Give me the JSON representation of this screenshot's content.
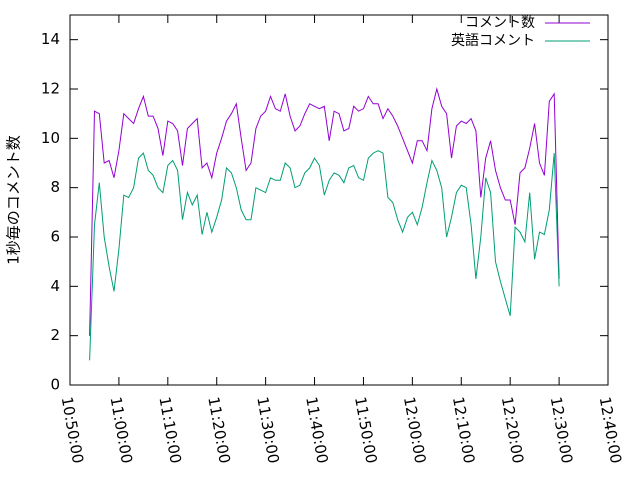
{
  "chart_data": {
    "type": "line",
    "y_label": "1秒毎のコメント数",
    "x": [
      "10:54:00",
      "10:55:00",
      "10:56:00",
      "10:57:00",
      "10:58:00",
      "10:59:00",
      "11:00:00",
      "11:01:00",
      "11:02:00",
      "11:03:00",
      "11:04:00",
      "11:05:00",
      "11:06:00",
      "11:07:00",
      "11:08:00",
      "11:09:00",
      "11:10:00",
      "11:11:00",
      "11:12:00",
      "11:13:00",
      "11:14:00",
      "11:15:00",
      "11:16:00",
      "11:17:00",
      "11:18:00",
      "11:19:00",
      "11:20:00",
      "11:21:00",
      "11:22:00",
      "11:23:00",
      "11:24:00",
      "11:25:00",
      "11:26:00",
      "11:27:00",
      "11:28:00",
      "11:29:00",
      "11:30:00",
      "11:31:00",
      "11:32:00",
      "11:33:00",
      "11:34:00",
      "11:35:00",
      "11:36:00",
      "11:37:00",
      "11:38:00",
      "11:39:00",
      "11:40:00",
      "11:41:00",
      "11:42:00",
      "11:43:00",
      "11:44:00",
      "11:45:00",
      "11:46:00",
      "11:47:00",
      "11:48:00",
      "11:49:00",
      "11:50:00",
      "11:51:00",
      "11:52:00",
      "11:53:00",
      "11:54:00",
      "11:55:00",
      "11:56:00",
      "11:57:00",
      "11:58:00",
      "11:59:00",
      "12:00:00",
      "12:01:00",
      "12:02:00",
      "12:03:00",
      "12:04:00",
      "12:05:00",
      "12:06:00",
      "12:07:00",
      "12:08:00",
      "12:09:00",
      "12:10:00",
      "12:11:00",
      "12:12:00",
      "12:13:00",
      "12:14:00",
      "12:15:00",
      "12:16:00",
      "12:17:00",
      "12:18:00",
      "12:19:00",
      "12:20:00",
      "12:21:00",
      "12:22:00",
      "12:23:00",
      "12:24:00",
      "12:25:00",
      "12:26:00",
      "12:27:00",
      "12:28:00",
      "12:29:00",
      "12:30:00"
    ],
    "series": [
      {
        "name": "コメント数",
        "color": "#9400d3",
        "values": [
          2.0,
          11.1,
          11.0,
          9.0,
          9.1,
          8.4,
          9.5,
          11.0,
          10.8,
          10.6,
          11.2,
          11.7,
          10.9,
          10.9,
          10.4,
          9.3,
          10.7,
          10.6,
          10.3,
          8.9,
          10.4,
          10.6,
          10.8,
          8.8,
          9.0,
          8.4,
          9.4,
          10.0,
          10.7,
          11.0,
          11.4,
          10.0,
          8.7,
          9.0,
          10.4,
          10.9,
          11.1,
          11.7,
          11.2,
          11.1,
          11.8,
          10.9,
          10.3,
          10.5,
          11.0,
          11.4,
          11.3,
          11.2,
          11.3,
          9.9,
          11.1,
          11.0,
          10.3,
          10.4,
          11.3,
          11.1,
          11.2,
          11.7,
          11.4,
          11.4,
          10.8,
          11.2,
          10.9,
          10.5,
          10.0,
          9.5,
          9.0,
          9.9,
          9.9,
          9.5,
          11.2,
          12.0,
          11.3,
          11.0,
          9.2,
          10.5,
          10.7,
          10.6,
          10.8,
          10.3,
          7.6,
          9.2,
          9.9,
          8.7,
          8.0,
          7.5,
          7.5,
          6.5,
          8.6,
          8.8,
          9.6,
          10.6,
          9.0,
          8.5,
          11.5,
          11.8,
          4.3
        ]
      },
      {
        "name": "英語コメント",
        "color": "#009e73",
        "values": [
          1.0,
          6.5,
          8.2,
          6.0,
          4.8,
          3.8,
          5.5,
          7.7,
          7.6,
          8.0,
          9.2,
          9.4,
          8.7,
          8.5,
          8.0,
          7.8,
          8.9,
          9.1,
          8.7,
          6.7,
          7.8,
          7.3,
          7.7,
          6.1,
          7.0,
          6.2,
          6.8,
          7.5,
          8.8,
          8.6,
          8.0,
          7.1,
          6.7,
          6.7,
          8.0,
          7.9,
          7.8,
          8.4,
          8.3,
          8.3,
          9.0,
          8.8,
          8.0,
          8.1,
          8.6,
          8.8,
          9.2,
          8.9,
          7.7,
          8.3,
          8.6,
          8.5,
          8.2,
          8.8,
          8.9,
          8.4,
          8.3,
          9.2,
          9.4,
          9.5,
          9.4,
          7.6,
          7.4,
          6.7,
          6.2,
          6.8,
          7.0,
          6.5,
          7.2,
          8.2,
          9.1,
          8.7,
          8.0,
          6.0,
          6.8,
          7.8,
          8.1,
          8.0,
          6.5,
          4.3,
          6.0,
          8.4,
          7.8,
          5.0,
          4.2,
          3.5,
          2.8,
          6.4,
          6.2,
          5.8,
          7.8,
          5.1,
          6.2,
          6.1,
          7.1,
          9.4,
          4.0
        ]
      }
    ],
    "xlim": [
      "10:50:00",
      "12:40:00"
    ],
    "xticks": [
      "10:50:00",
      "11:00:00",
      "11:10:00",
      "11:20:00",
      "11:30:00",
      "11:40:00",
      "11:50:00",
      "12:00:00",
      "12:10:00",
      "12:20:00",
      "12:30:00",
      "12:40:00"
    ],
    "ylim": [
      0,
      15
    ],
    "yticks": [
      0,
      2,
      4,
      6,
      8,
      10,
      12,
      14
    ],
    "legend": "top-right"
  }
}
